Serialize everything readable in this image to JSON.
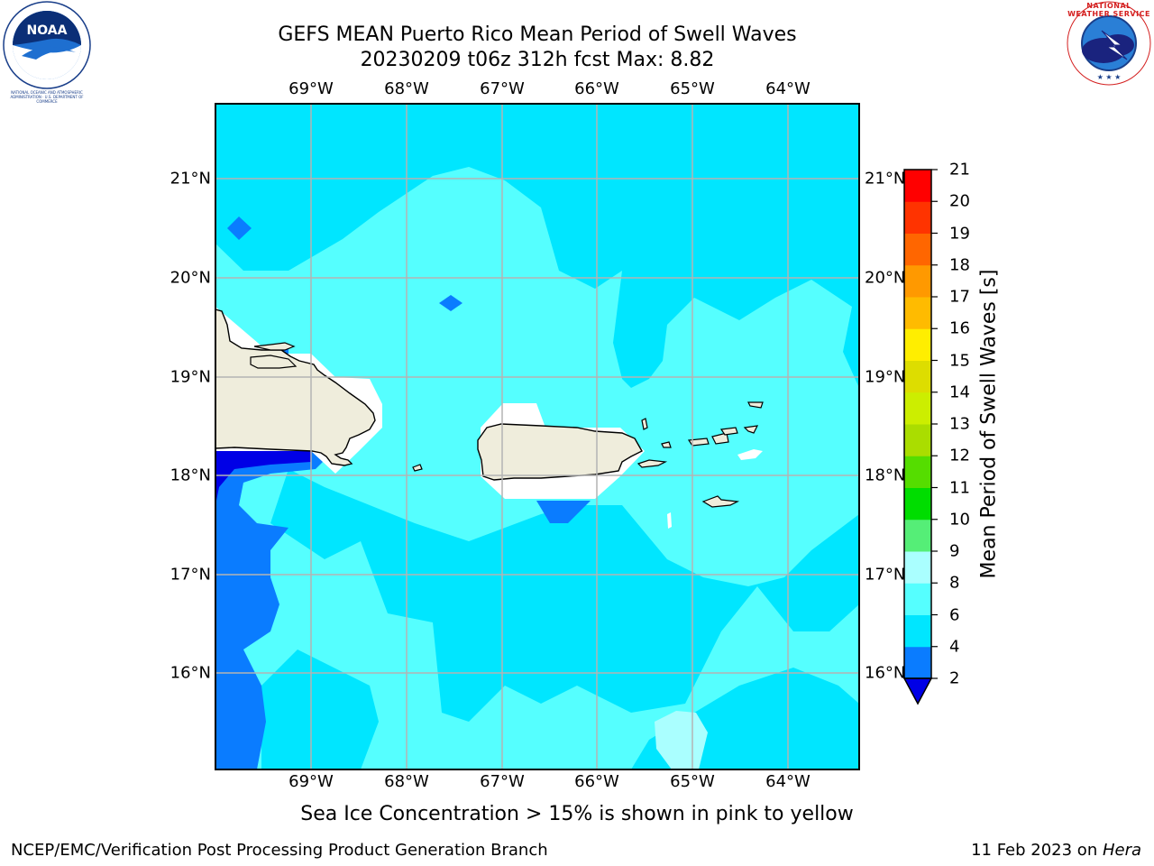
{
  "title": {
    "line1": "GEFS MEAN Puerto Rico Mean Period of Swell Waves",
    "line2": "20230209 t06z 312h fcst   Max: 8.82"
  },
  "axes": {
    "lon_ticks": [
      "69°W",
      "68°W",
      "67°W",
      "66°W",
      "65°W",
      "64°W"
    ],
    "lat_ticks": [
      "21°N",
      "20°N",
      "19°N",
      "18°N",
      "17°N",
      "16°N"
    ]
  },
  "colorbar": {
    "label": "Mean Period of Swell Waves [s]",
    "ticks": [
      "2",
      "4",
      "6",
      "8",
      "9",
      "10",
      "11",
      "12",
      "13",
      "14",
      "15",
      "16",
      "17",
      "18",
      "19",
      "20",
      "21"
    ],
    "colors": [
      "#0000e6",
      "#0a7cff",
      "#00e6ff",
      "#55ffff",
      "#aaffff",
      "#55ee77",
      "#00dd00",
      "#55dd00",
      "#aadd00",
      "#ccee00",
      "#dddd00",
      "#ffee00",
      "#ffbb00",
      "#ff9900",
      "#ff6600",
      "#ff3300",
      "#ff0000"
    ]
  },
  "logos": {
    "noaa": "NOAA",
    "nws_ring": "NATIONAL WEATHER SERVICE",
    "noaa_ring": "NATIONAL OCEANIC AND ATMOSPHERIC ADMINISTRATION · U.S. DEPARTMENT OF COMMERCE"
  },
  "note": "Sea Ice Concentration > 15% is shown in pink to yellow",
  "footer": {
    "left": "NCEP/EMC/Verification Post Processing Product Generation Branch",
    "right_prefix": "11 Feb 2023 on ",
    "right_host": "Hera"
  },
  "map_colors": {
    "water_6_8": "#55ffff",
    "water_4_6": "#00e6ff",
    "water_2_4": "#0a7cff",
    "water_lt2": "#0000e6",
    "water_8_9": "#aaffff",
    "land": "#efeddc",
    "grid": "#b4b4b4"
  }
}
